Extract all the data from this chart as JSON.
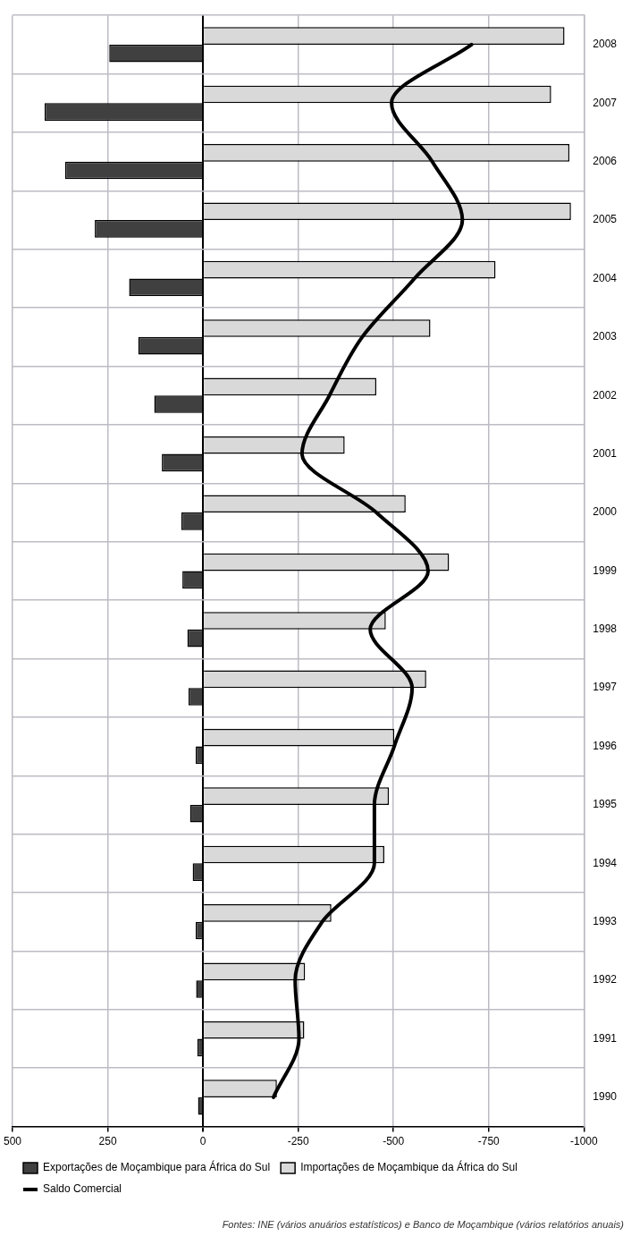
{
  "chart_data": {
    "type": "bar",
    "orientation": "horizontal",
    "categories": [
      "2008",
      "2007",
      "2006",
      "2005",
      "2004",
      "2003",
      "2002",
      "2001",
      "2000",
      "1999",
      "1998",
      "1997",
      "1996",
      "1995",
      "1994",
      "1993",
      "1992",
      "1991",
      "1990"
    ],
    "series": [
      {
        "name": "Exportações de Moçambique para África do Sul",
        "color": "#404040",
        "values": [
          246,
          416,
          362,
          284,
          194,
          170,
          128,
          108,
          57,
          54,
          41,
          38,
          19,
          34,
          27,
          19,
          18,
          15,
          13
        ]
      },
      {
        "name": "Importações de Moçambique da África do Sul",
        "color": "#d9d9d9",
        "values": [
          -949,
          -914,
          -962,
          -966,
          -768,
          -597,
          -455,
          -372,
          -532,
          -646,
          -480,
          -586,
          -502,
          -488,
          -476,
          -337,
          -268,
          -266,
          -194
        ]
      },
      {
        "name": "Saldo Comercial",
        "type": "line",
        "color": "#000000",
        "marker": "none",
        "values": [
          -705,
          -495,
          -602,
          -681,
          -555,
          -418,
          -332,
          -260,
          -455,
          -591,
          -439,
          -549,
          -502,
          -450,
          -450,
          -313,
          -242,
          -252,
          -185
        ]
      }
    ],
    "xlim": [
      500,
      -1000
    ],
    "xticks": [
      500,
      250,
      0,
      -250,
      -500,
      -750,
      -1000
    ],
    "grid": true,
    "legend": "bottom",
    "annotations": [
      "Fontes: INE (vários anuários estatísticos)  e Banco de Moçambique (vários relatórios anuais)"
    ]
  }
}
